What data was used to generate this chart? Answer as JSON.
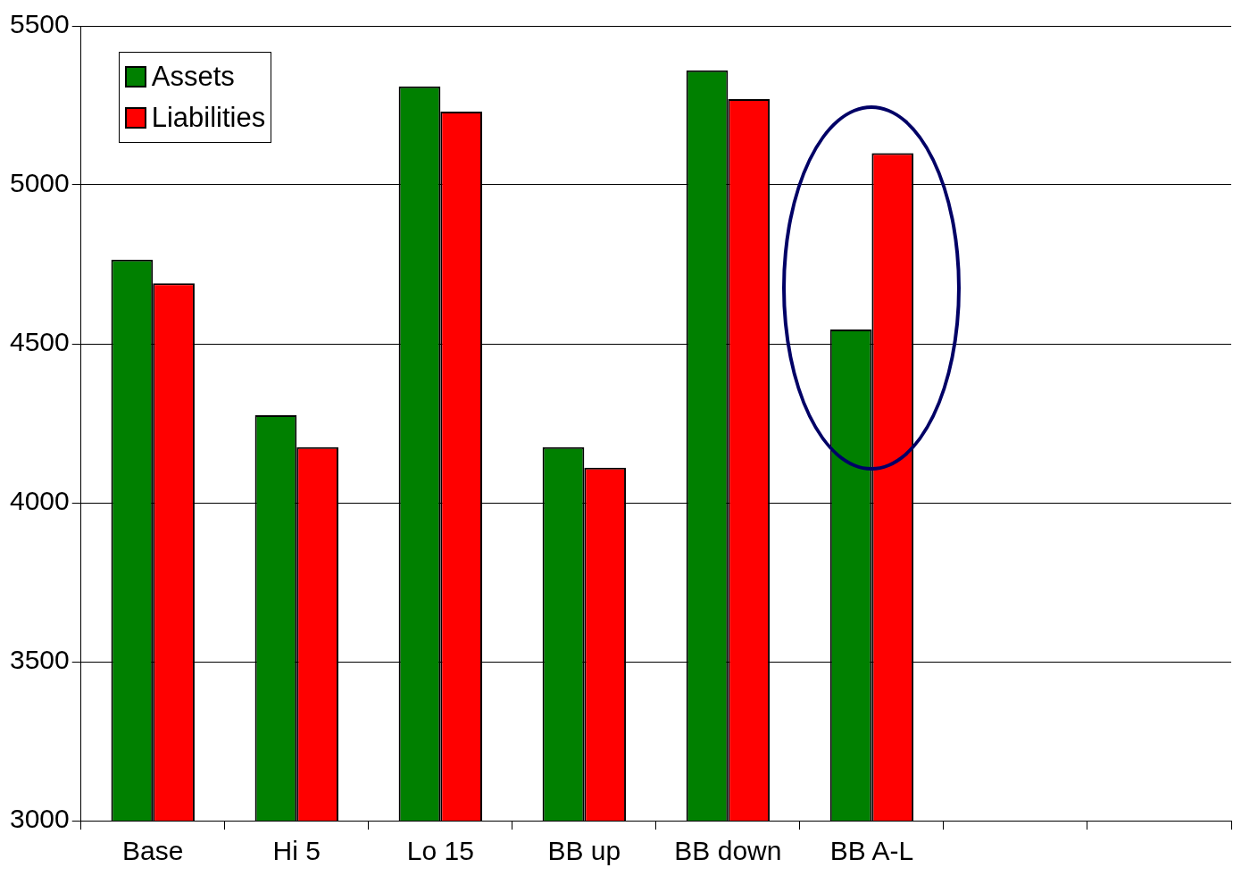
{
  "chart_data": {
    "type": "bar",
    "categories": [
      "Base",
      "Hi 5",
      "Lo 15",
      "BB up",
      "BB down",
      "BB A-L",
      null,
      null
    ],
    "series": [
      {
        "name": "Assets",
        "color": "#008000",
        "values": [
          4765,
          4275,
          5310,
          4175,
          5360,
          4545,
          null,
          null
        ]
      },
      {
        "name": "Liabilities",
        "color": "#ff0000",
        "values": [
          4690,
          4175,
          5230,
          4110,
          5270,
          5100,
          null,
          null
        ]
      }
    ],
    "ylim": [
      3000,
      5500
    ],
    "yticks": [
      3000,
      3500,
      4000,
      4500,
      5000,
      5500
    ],
    "grid": "y",
    "legend": "top left"
  }
}
